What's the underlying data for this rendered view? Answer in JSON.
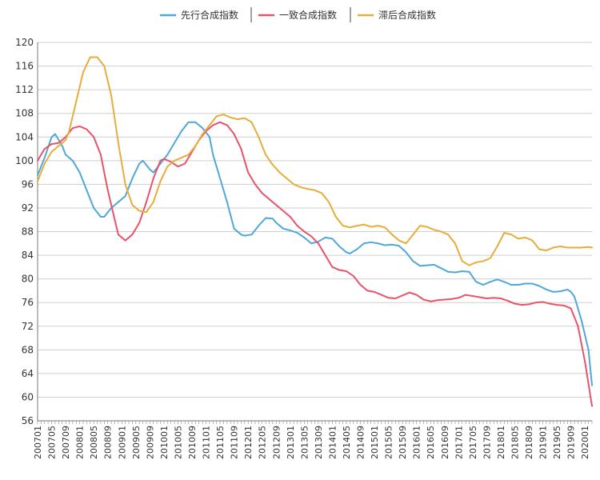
{
  "chart_data": {
    "type": "line",
    "title": "",
    "xlabel": "",
    "ylabel": "",
    "ylim": [
      56,
      120
    ],
    "ytick_step": 4,
    "grid": true,
    "legend_position": "top-center",
    "x_start": "200701",
    "x_end": "202003",
    "x_tick_labels": [
      "200701",
      "200705",
      "200709",
      "200801",
      "200805",
      "200809",
      "200901",
      "200905",
      "200909",
      "201001",
      "201005",
      "201009",
      "201101",
      "201105",
      "201109",
      "201201",
      "201205",
      "201209",
      "201301",
      "201305",
      "201309",
      "201401",
      "201405",
      "201409",
      "201501",
      "201505",
      "201509",
      "201601",
      "201605",
      "201609",
      "201701",
      "201705",
      "201709",
      "201801",
      "201805",
      "201809",
      "201901",
      "201905",
      "201909",
      "202001"
    ],
    "series": [
      {
        "name": "先行合成指数",
        "color": "#4fa8d8",
        "points": [
          [
            "200701",
            97.5
          ],
          [
            "200703",
            100.5
          ],
          [
            "200705",
            104
          ],
          [
            "200706",
            104.5
          ],
          [
            "200708",
            102.5
          ],
          [
            "200709",
            101
          ],
          [
            "200711",
            100
          ],
          [
            "200801",
            98
          ],
          [
            "200803",
            95
          ],
          [
            "200805",
            92
          ],
          [
            "200807",
            90.5
          ],
          [
            "200808",
            90.5
          ],
          [
            "200810",
            92
          ],
          [
            "200812",
            93
          ],
          [
            "200902",
            94
          ],
          [
            "200904",
            97
          ],
          [
            "200906",
            99.5
          ],
          [
            "200907",
            100
          ],
          [
            "200909",
            98.5
          ],
          [
            "200910",
            98
          ],
          [
            "200912",
            99.5
          ],
          [
            "201002",
            101
          ],
          [
            "201004",
            103
          ],
          [
            "201006",
            105
          ],
          [
            "201008",
            106.5
          ],
          [
            "201010",
            106.5
          ],
          [
            "201012",
            105.5
          ],
          [
            "201102",
            104
          ],
          [
            "201103",
            101
          ],
          [
            "201105",
            97
          ],
          [
            "201107",
            93
          ],
          [
            "201109",
            88.5
          ],
          [
            "201111",
            87.5
          ],
          [
            "201112",
            87.3
          ],
          [
            "201202",
            87.5
          ],
          [
            "201204",
            89
          ],
          [
            "201206",
            90.3
          ],
          [
            "201208",
            90.2
          ],
          [
            "201209",
            89.5
          ],
          [
            "201211",
            88.5
          ],
          [
            "201301",
            88.2
          ],
          [
            "201303",
            87.8
          ],
          [
            "201305",
            87
          ],
          [
            "201307",
            86
          ],
          [
            "201309",
            86.3
          ],
          [
            "201311",
            87
          ],
          [
            "201401",
            86.8
          ],
          [
            "201403",
            85.5
          ],
          [
            "201405",
            84.5
          ],
          [
            "201406",
            84.3
          ],
          [
            "201408",
            85
          ],
          [
            "201410",
            86
          ],
          [
            "201412",
            86.2
          ],
          [
            "201502",
            86
          ],
          [
            "201504",
            85.7
          ],
          [
            "201506",
            85.8
          ],
          [
            "201508",
            85.6
          ],
          [
            "201510",
            84.5
          ],
          [
            "201512",
            83
          ],
          [
            "201602",
            82.2
          ],
          [
            "201604",
            82.3
          ],
          [
            "201606",
            82.4
          ],
          [
            "201608",
            81.8
          ],
          [
            "201610",
            81.2
          ],
          [
            "201612",
            81.1
          ],
          [
            "201702",
            81.3
          ],
          [
            "201704",
            81.2
          ],
          [
            "201706",
            79.5
          ],
          [
            "201708",
            79
          ],
          [
            "201710",
            79.5
          ],
          [
            "201712",
            79.9
          ],
          [
            "201802",
            79.5
          ],
          [
            "201804",
            79
          ],
          [
            "201806",
            79
          ],
          [
            "201808",
            79.2
          ],
          [
            "201810",
            79.2
          ],
          [
            "201812",
            78.8
          ],
          [
            "201902",
            78.2
          ],
          [
            "201904",
            77.8
          ],
          [
            "201906",
            77.9
          ],
          [
            "201908",
            78.2
          ],
          [
            "201909",
            77.8
          ],
          [
            "201910",
            77
          ],
          [
            "201912",
            73
          ],
          [
            "202002",
            68
          ],
          [
            "202003",
            62
          ]
        ]
      },
      {
        "name": "一致合成指数",
        "color": "#e8536a",
        "points": [
          [
            "200701",
            100
          ],
          [
            "200703",
            102
          ],
          [
            "200705",
            102.8
          ],
          [
            "200707",
            103
          ],
          [
            "200709",
            104
          ],
          [
            "200711",
            105.5
          ],
          [
            "200801",
            105.8
          ],
          [
            "200803",
            105.3
          ],
          [
            "200805",
            104
          ],
          [
            "200807",
            101
          ],
          [
            "200809",
            95
          ],
          [
            "200811",
            90
          ],
          [
            "200812",
            87.5
          ],
          [
            "200902",
            86.5
          ],
          [
            "200904",
            87.5
          ],
          [
            "200906",
            89.5
          ],
          [
            "200908",
            93
          ],
          [
            "200910",
            97
          ],
          [
            "200912",
            100
          ],
          [
            "201001",
            100.3
          ],
          [
            "201003",
            99.8
          ],
          [
            "201005",
            99
          ],
          [
            "201007",
            99.5
          ],
          [
            "201009",
            101.5
          ],
          [
            "201011",
            103.5
          ],
          [
            "201101",
            105
          ],
          [
            "201103",
            106
          ],
          [
            "201105",
            106.5
          ],
          [
            "201107",
            106
          ],
          [
            "201109",
            104.5
          ],
          [
            "201111",
            102
          ],
          [
            "201201",
            98
          ],
          [
            "201203",
            96
          ],
          [
            "201205",
            94.5
          ],
          [
            "201207",
            93.5
          ],
          [
            "201209",
            92.5
          ],
          [
            "201211",
            91.5
          ],
          [
            "201301",
            90.5
          ],
          [
            "201303",
            89
          ],
          [
            "201305",
            88
          ],
          [
            "201307",
            87.2
          ],
          [
            "201309",
            86
          ],
          [
            "201311",
            84
          ],
          [
            "201401",
            82
          ],
          [
            "201403",
            81.5
          ],
          [
            "201405",
            81.3
          ],
          [
            "201407",
            80.5
          ],
          [
            "201409",
            79
          ],
          [
            "201411",
            78
          ],
          [
            "201501",
            77.8
          ],
          [
            "201503",
            77.3
          ],
          [
            "201505",
            76.8
          ],
          [
            "201507",
            76.7
          ],
          [
            "201509",
            77.2
          ],
          [
            "201511",
            77.7
          ],
          [
            "201601",
            77.3
          ],
          [
            "201603",
            76.5
          ],
          [
            "201605",
            76.2
          ],
          [
            "201607",
            76.4
          ],
          [
            "201609",
            76.5
          ],
          [
            "201611",
            76.6
          ],
          [
            "201701",
            76.8
          ],
          [
            "201703",
            77.3
          ],
          [
            "201705",
            77.1
          ],
          [
            "201707",
            76.9
          ],
          [
            "201709",
            76.7
          ],
          [
            "201711",
            76.8
          ],
          [
            "201801",
            76.7
          ],
          [
            "201803",
            76.3
          ],
          [
            "201805",
            75.8
          ],
          [
            "201807",
            75.6
          ],
          [
            "201809",
            75.7
          ],
          [
            "201811",
            76
          ],
          [
            "201901",
            76.1
          ],
          [
            "201903",
            75.8
          ],
          [
            "201905",
            75.6
          ],
          [
            "201907",
            75.5
          ],
          [
            "201909",
            75
          ],
          [
            "201911",
            72
          ],
          [
            "202001",
            66
          ],
          [
            "202003",
            58.5
          ]
        ]
      },
      {
        "name": "滞后合成指数",
        "color": "#e6ac3c",
        "points": [
          [
            "200701",
            96.5
          ],
          [
            "200703",
            99.5
          ],
          [
            "200705",
            101.5
          ],
          [
            "200707",
            102.5
          ],
          [
            "200709",
            103.5
          ],
          [
            "200710",
            105
          ],
          [
            "200712",
            110
          ],
          [
            "200802",
            115
          ],
          [
            "200804",
            117.5
          ],
          [
            "200806",
            117.5
          ],
          [
            "200808",
            116
          ],
          [
            "200810",
            111
          ],
          [
            "200812",
            103
          ],
          [
            "200902",
            96
          ],
          [
            "200904",
            92.5
          ],
          [
            "200906",
            91.5
          ],
          [
            "200908",
            91.3
          ],
          [
            "200910",
            93
          ],
          [
            "200912",
            96.5
          ],
          [
            "201002",
            99
          ],
          [
            "201004",
            100
          ],
          [
            "201006",
            100.5
          ],
          [
            "201008",
            101
          ],
          [
            "201010",
            102.5
          ],
          [
            "201012",
            104.5
          ],
          [
            "201102",
            106
          ],
          [
            "201104",
            107.5
          ],
          [
            "201106",
            107.8
          ],
          [
            "201108",
            107.3
          ],
          [
            "201110",
            107
          ],
          [
            "201112",
            107.2
          ],
          [
            "201202",
            106.5
          ],
          [
            "201204",
            104
          ],
          [
            "201206",
            101
          ],
          [
            "201208",
            99.3
          ],
          [
            "201210",
            98
          ],
          [
            "201212",
            97
          ],
          [
            "201302",
            96
          ],
          [
            "201304",
            95.5
          ],
          [
            "201306",
            95.2
          ],
          [
            "201308",
            95
          ],
          [
            "201310",
            94.5
          ],
          [
            "201312",
            93
          ],
          [
            "201402",
            90.5
          ],
          [
            "201404",
            89
          ],
          [
            "201406",
            88.7
          ],
          [
            "201408",
            89
          ],
          [
            "201410",
            89.2
          ],
          [
            "201412",
            88.8
          ],
          [
            "201502",
            89
          ],
          [
            "201504",
            88.7
          ],
          [
            "201506",
            87.5
          ],
          [
            "201508",
            86.5
          ],
          [
            "201510",
            86
          ],
          [
            "201512",
            87.5
          ],
          [
            "201602",
            89
          ],
          [
            "201604",
            88.8
          ],
          [
            "201606",
            88.3
          ],
          [
            "201608",
            88
          ],
          [
            "201610",
            87.5
          ],
          [
            "201612",
            86
          ],
          [
            "201702",
            83
          ],
          [
            "201704",
            82.3
          ],
          [
            "201706",
            82.8
          ],
          [
            "201708",
            83
          ],
          [
            "201710",
            83.5
          ],
          [
            "201712",
            85.5
          ],
          [
            "201802",
            87.8
          ],
          [
            "201804",
            87.5
          ],
          [
            "201806",
            86.8
          ],
          [
            "201808",
            87
          ],
          [
            "201810",
            86.5
          ],
          [
            "201812",
            85
          ],
          [
            "201902",
            84.8
          ],
          [
            "201904",
            85.3
          ],
          [
            "201906",
            85.5
          ],
          [
            "201908",
            85.3
          ],
          [
            "201910",
            85.3
          ],
          [
            "201912",
            85.3
          ],
          [
            "202002",
            85.4
          ],
          [
            "202003",
            85.3
          ]
        ]
      }
    ]
  }
}
